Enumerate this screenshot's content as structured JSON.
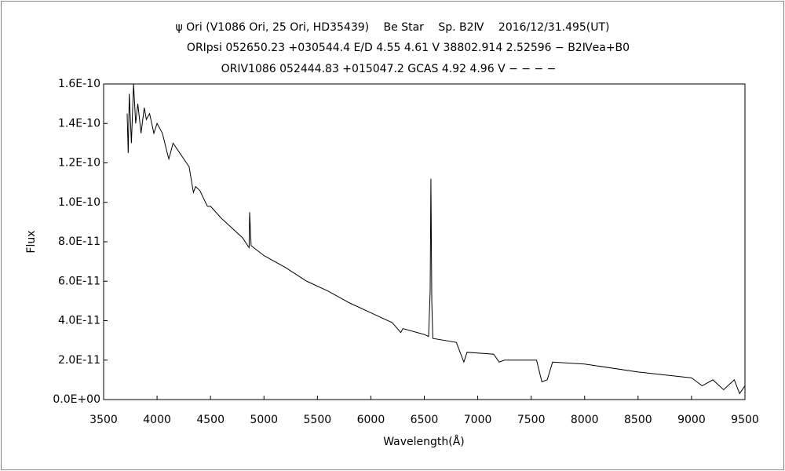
{
  "chart_data": {
    "type": "line",
    "title": "ψ Ori (V1086 Ori, 25 Ori, HD35439)　 Be Star　 Sp. B2Ⅳ　 2016/12/31.495(UT)",
    "subtitle": [
      "ORIpsi 052650.23 +030544.4 E/D 4.55 4.61 V 38802.914 2.52596 − B2Ⅳea+B0",
      "ORIV1086 052444.83 +015047.2 GCAS 4.92 4.96 V − − − −"
    ],
    "xlabel": "Wavelength(Å)",
    "ylabel": "Flux",
    "color": "#000000",
    "x": [
      3720,
      3730,
      3740,
      3760,
      3780,
      3800,
      3820,
      3850,
      3880,
      3900,
      3930,
      3970,
      4000,
      4050,
      4100,
      4110,
      4150,
      4200,
      4300,
      4340,
      4360,
      4400,
      4471,
      4500,
      4600,
      4700,
      4800,
      4861,
      4866,
      4880,
      5000,
      5200,
      5400,
      5600,
      5800,
      6000,
      6200,
      6280,
      6300,
      6500,
      6540,
      6555,
      6562,
      6570,
      6580,
      6800,
      6870,
      6900,
      7150,
      7200,
      7250,
      7400,
      7550,
      7600,
      7650,
      7700,
      8000,
      8500,
      9000,
      9100,
      9200,
      9300,
      9400,
      9450,
      9500
    ],
    "values": [
      1.45e-10,
      1.25e-10,
      1.55e-10,
      1.3e-10,
      1.6e-10,
      1.4e-10,
      1.5e-10,
      1.35e-10,
      1.48e-10,
      1.42e-10,
      1.45e-10,
      1.35e-10,
      1.4e-10,
      1.35e-10,
      1.24e-10,
      1.22e-10,
      1.3e-10,
      1.26e-10,
      1.18e-10,
      1.05e-10,
      1.08e-10,
      1.06e-10,
      9.8e-11,
      9.8e-11,
      9.2e-11,
      8.7e-11,
      8.2e-11,
      7.7e-11,
      9.5e-11,
      7.8e-11,
      7.3e-11,
      6.7e-11,
      6e-11,
      5.5e-11,
      4.9e-11,
      4.4e-11,
      3.9e-11,
      3.4e-11,
      3.6e-11,
      3.3e-11,
      3.2e-11,
      5.5e-11,
      1.12e-10,
      5e-11,
      3.1e-11,
      2.9e-11,
      1.9e-11,
      2.4e-11,
      2.3e-11,
      1.9e-11,
      2e-11,
      2e-11,
      2e-11,
      9e-12,
      1e-11,
      1.9e-11,
      1.8e-11,
      1.4e-11,
      1.1e-11,
      7e-12,
      1e-11,
      5e-12,
      1e-11,
      3e-12,
      7e-12
    ],
    "xlim": [
      3500,
      9500
    ],
    "xticks": [
      3500,
      4000,
      4500,
      5000,
      5500,
      6000,
      6500,
      7000,
      7500,
      8000,
      8500,
      9000,
      9500
    ],
    "ylim": [
      0,
      1.6e-10
    ],
    "yticks": [
      {
        "value": 0,
        "label": "0.0E+00"
      },
      {
        "value": 2e-11,
        "label": "2.0E-11"
      },
      {
        "value": 4e-11,
        "label": "4.0E-11"
      },
      {
        "value": 6e-11,
        "label": "6.0E-11"
      },
      {
        "value": 8e-11,
        "label": "8.0E-11"
      },
      {
        "value": 1e-10,
        "label": "1.0E-10"
      },
      {
        "value": 1.2e-10,
        "label": "1.2E-10"
      },
      {
        "value": 1.4e-10,
        "label": "1.4E-10"
      },
      {
        "value": 1.6e-10,
        "label": "1.6E-10"
      }
    ],
    "grid": false
  }
}
